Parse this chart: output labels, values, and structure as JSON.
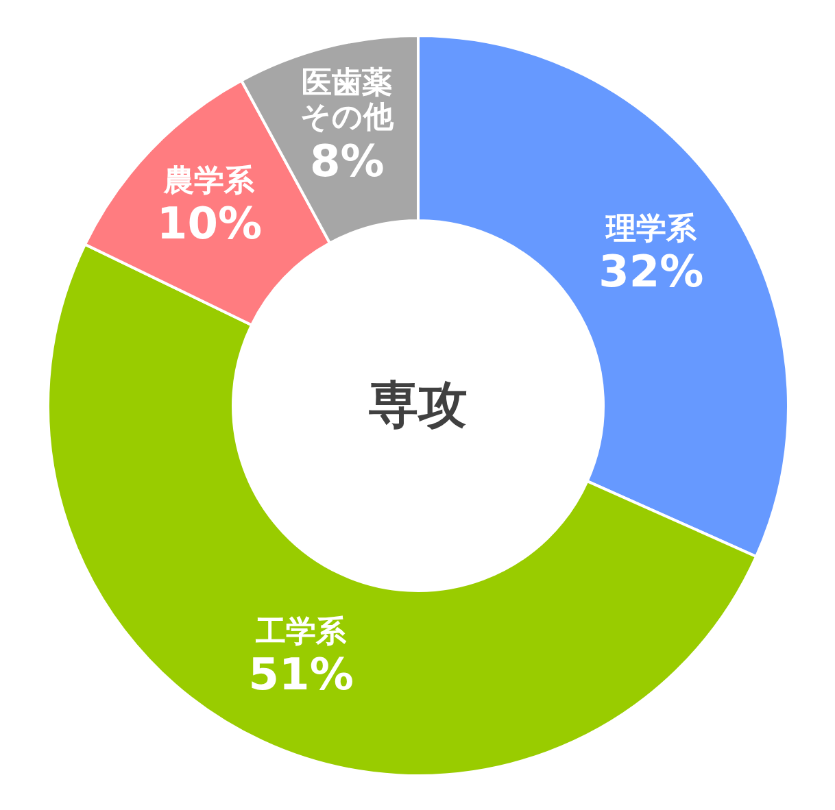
{
  "chart_data": {
    "type": "donut",
    "title": "専攻",
    "categories": [
      "理学系",
      "工学系",
      "農学系",
      "医歯薬その他"
    ],
    "values": [
      32,
      51,
      10,
      8
    ],
    "value_labels": [
      "32%",
      "51%",
      "10%",
      "8%"
    ],
    "colors": [
      "#6699ff",
      "#99cc00",
      "#ff7c80",
      "#a6a6a6"
    ]
  }
}
